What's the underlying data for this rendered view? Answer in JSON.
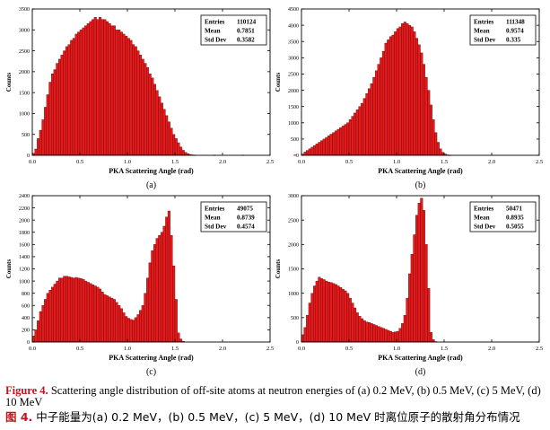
{
  "caption": {
    "en_label": "Figure 4.",
    "en_text": " Scattering angle distribution of off-site atoms at neutron energies of (a) 0.2 MeV, (b) 0.5 MeV, (c) 5 MeV, (d) 10 MeV",
    "zh_label": "图 4.",
    "zh_text": " 中子能量为(a) 0.2 MeV，(b) 0.5 MeV，(c) 5 MeV，(d) 10 MeV 时离位原子的散射角分布情况"
  },
  "colors": {
    "bar_fill": "#e41a1c",
    "bar_edge": "#5a0000",
    "axis": "#000000"
  },
  "chart_data": [
    {
      "type": "bar",
      "panel_label": "(a)",
      "xlabel": "PKA Scattering Angle (rad)",
      "ylabel": "Counts",
      "xlim": [
        0,
        2.5
      ],
      "ylim": [
        0,
        3500
      ],
      "xticks": [
        "0.0",
        "0.5",
        "1.0",
        "1.5",
        "2.0",
        "2.5"
      ],
      "yticks": [
        "0",
        "500",
        "1000",
        "1500",
        "2000",
        "2500",
        "3000",
        "3500"
      ],
      "ytick_values": [
        0,
        500,
        1000,
        1500,
        2000,
        2500,
        3000,
        3500
      ],
      "bin_width": 0.025,
      "x_start": 0.0,
      "values": [
        50,
        150,
        400,
        600,
        850,
        1150,
        1450,
        1750,
        1950,
        2050,
        2200,
        2300,
        2400,
        2500,
        2600,
        2650,
        2750,
        2800,
        2900,
        2950,
        3000,
        3050,
        3100,
        3150,
        3200,
        3250,
        3300,
        3250,
        3300,
        3250,
        3250,
        3200,
        3150,
        3100,
        3100,
        3000,
        3000,
        2950,
        2900,
        2850,
        2800,
        2750,
        2650,
        2600,
        2500,
        2400,
        2300,
        2200,
        2100,
        1950,
        1850,
        1700,
        1550,
        1400,
        1250,
        1100,
        950,
        800,
        650,
        500,
        400,
        300,
        200,
        120,
        70,
        40,
        20,
        10,
        5,
        0,
        0,
        0,
        0,
        0,
        0,
        0,
        5,
        0,
        0,
        0,
        0,
        0,
        0,
        0,
        0,
        0,
        0,
        0,
        8,
        0,
        0,
        0,
        0,
        0,
        0,
        0,
        0,
        0,
        0,
        0,
        0,
        0,
        0,
        0,
        0,
        0,
        0,
        0,
        0,
        0,
        10,
        0,
        0,
        0,
        0,
        0,
        0,
        0,
        0,
        0
      ],
      "stats": [
        {
          "label": "Entries",
          "value": "110124"
        },
        {
          "label": "Mean",
          "value": "0.7851"
        },
        {
          "label": "Std Dev",
          "value": "0.3582"
        }
      ]
    },
    {
      "type": "bar",
      "panel_label": "(b)",
      "xlabel": "PKA Scattering Angle (rad)",
      "ylabel": "Counts",
      "xlim": [
        0,
        2.5
      ],
      "ylim": [
        0,
        4500
      ],
      "xticks": [
        "0.0",
        "0.5",
        "1.0",
        "1.5",
        "2.0",
        "2.5"
      ],
      "yticks": [
        "0",
        "500",
        "1000",
        "1500",
        "2000",
        "2500",
        "3000",
        "3500",
        "4000",
        "4500"
      ],
      "ytick_values": [
        0,
        500,
        1000,
        1500,
        2000,
        2500,
        3000,
        3500,
        4000,
        4500
      ],
      "bin_width": 0.025,
      "x_start": 0.0,
      "values": [
        40,
        100,
        150,
        200,
        250,
        300,
        350,
        400,
        450,
        500,
        550,
        600,
        650,
        700,
        750,
        800,
        850,
        900,
        950,
        1000,
        1100,
        1200,
        1300,
        1400,
        1500,
        1600,
        1750,
        1900,
        2050,
        2200,
        2400,
        2600,
        2800,
        3000,
        3200,
        3450,
        3550,
        3650,
        3700,
        3800,
        3900,
        3950,
        4050,
        4100,
        4050,
        4000,
        3950,
        3800,
        3600,
        3400,
        3150,
        2800,
        2400,
        2000,
        1550,
        1100,
        700,
        400,
        200,
        90,
        40,
        15,
        5,
        0,
        0,
        0,
        0,
        0,
        0,
        0,
        0,
        0,
        0,
        0,
        0,
        0,
        0,
        0,
        0,
        0,
        0,
        0,
        0,
        0,
        0,
        0,
        0,
        0,
        0,
        0,
        0,
        0,
        0,
        0,
        0,
        0,
        0,
        0,
        0,
        0
      ],
      "stats": [
        {
          "label": "Entries",
          "value": "111348"
        },
        {
          "label": "Mean",
          "value": "0.9574"
        },
        {
          "label": "Std Dev",
          "value": "0.335"
        }
      ]
    },
    {
      "type": "bar",
      "panel_label": "(c)",
      "xlabel": "PKA Scattering Angle (rad)",
      "ylabel": "Counts",
      "xlim": [
        0,
        2.5
      ],
      "ylim": [
        0,
        2400
      ],
      "xticks": [
        "0.0",
        "0.5",
        "1.0",
        "1.5",
        "2.0",
        "2.5"
      ],
      "yticks": [
        "0",
        "200",
        "400",
        "600",
        "800",
        "1000",
        "1200",
        "1400",
        "1600",
        "1800",
        "2000",
        "2200",
        "2400"
      ],
      "ytick_values": [
        0,
        200,
        400,
        600,
        800,
        1000,
        1200,
        1400,
        1600,
        1800,
        2000,
        2200,
        2400
      ],
      "bin_width": 0.025,
      "x_start": 0.0,
      "values": [
        100,
        200,
        350,
        500,
        600,
        700,
        800,
        850,
        900,
        950,
        1000,
        1050,
        1050,
        1080,
        1080,
        1070,
        1060,
        1050,
        1060,
        1050,
        1040,
        1030,
        1000,
        980,
        960,
        940,
        920,
        900,
        870,
        820,
        780,
        760,
        740,
        720,
        700,
        650,
        600,
        550,
        480,
        420,
        390,
        370,
        360,
        400,
        450,
        520,
        600,
        800,
        1050,
        1300,
        1500,
        1600,
        1700,
        1750,
        1800,
        1900,
        2050,
        2150,
        1750,
        1250,
        700,
        150,
        50,
        10,
        0,
        0,
        0,
        0,
        0,
        0,
        0,
        0,
        0,
        0,
        0,
        0,
        0,
        0,
        0,
        0,
        0,
        0,
        0,
        0,
        0,
        0,
        0,
        0,
        0,
        0,
        0,
        0,
        0,
        0,
        0,
        0,
        0,
        0,
        0,
        0
      ],
      "stats": [
        {
          "label": "Entries",
          "value": "49075"
        },
        {
          "label": "Mean",
          "value": "0.8739"
        },
        {
          "label": "Std Dev",
          "value": "0.4574"
        }
      ]
    },
    {
      "type": "bar",
      "panel_label": "(d)",
      "xlabel": "PKA Scattering Angle (rad)",
      "ylabel": "Counts",
      "xlim": [
        0,
        2.5
      ],
      "ylim": [
        0,
        3000
      ],
      "xticks": [
        "0.0",
        "0.5",
        "1.0",
        "1.5",
        "2.0",
        "2.5"
      ],
      "yticks": [
        "0",
        "500",
        "1000",
        "1500",
        "2000",
        "2500",
        "3000"
      ],
      "ytick_values": [
        0,
        500,
        1000,
        1500,
        2000,
        2500,
        3000
      ],
      "bin_width": 0.025,
      "x_start": 0.0,
      "values": [
        150,
        300,
        550,
        800,
        1000,
        1150,
        1250,
        1330,
        1300,
        1280,
        1250,
        1230,
        1220,
        1200,
        1180,
        1150,
        1120,
        1080,
        1050,
        1000,
        900,
        800,
        700,
        600,
        530,
        480,
        440,
        410,
        400,
        380,
        360,
        340,
        320,
        300,
        280,
        260,
        240,
        220,
        200,
        210,
        220,
        280,
        380,
        550,
        900,
        1400,
        1800,
        2200,
        2600,
        2850,
        2950,
        2700,
        2000,
        1100,
        200,
        50,
        10,
        0,
        0,
        0,
        0,
        0,
        0,
        0,
        0,
        0,
        0,
        0,
        0,
        0,
        0,
        0,
        0,
        0,
        0,
        0,
        0,
        0,
        0,
        0,
        0,
        0,
        0,
        0,
        0,
        0,
        0,
        0,
        0,
        0,
        0,
        0,
        0,
        0,
        0,
        0,
        0,
        0,
        0,
        0
      ],
      "stats": [
        {
          "label": "Entries",
          "value": "50471"
        },
        {
          "label": "Mean",
          "value": "0.8935"
        },
        {
          "label": "Std Dev",
          "value": "0.5055"
        }
      ]
    }
  ]
}
